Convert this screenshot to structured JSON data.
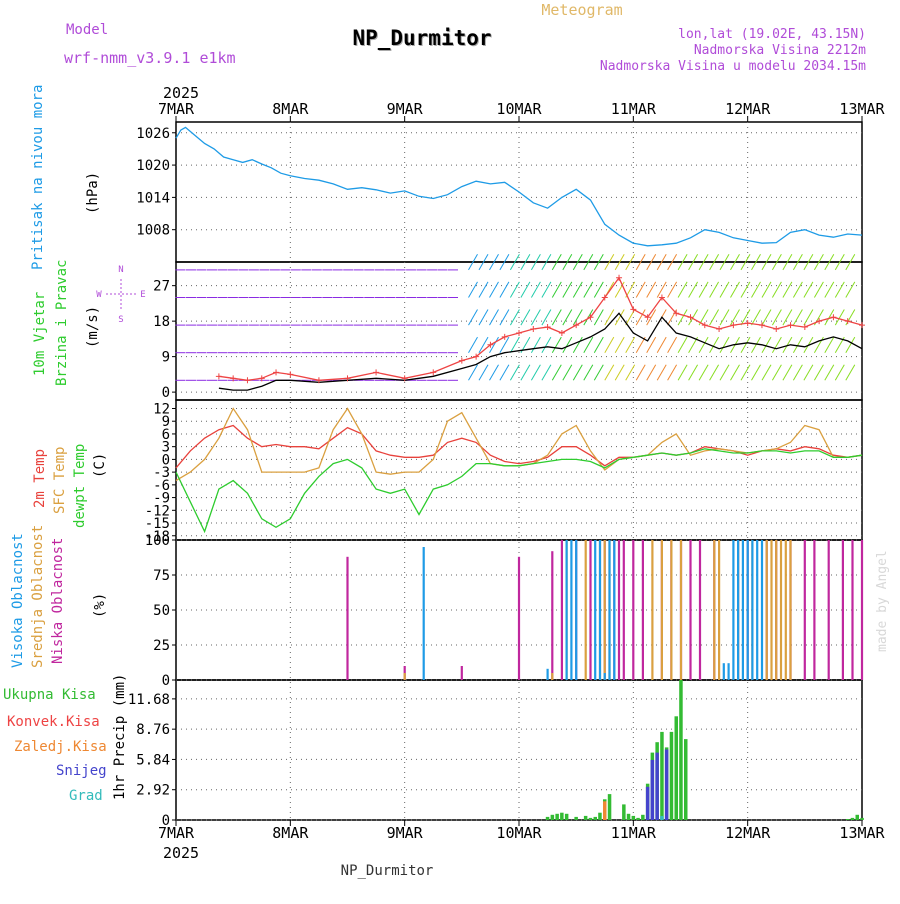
{
  "header": {
    "model_label": "Model",
    "model_name": "wrf-nmm_v3.9.1  e1km",
    "title": "NP_Durmitor",
    "meteogram_label": "Meteogram",
    "lonlat": "lon,lat (19.02E, 43.15N)",
    "altitude": "Nadmorska Visina 2212m",
    "model_altitude": "Nadmorska Visina u modelu 2034.15m",
    "footer_station": "NP_Durmitor",
    "credit": "made by Angel"
  },
  "time_axis": {
    "year": "2025",
    "ticks": [
      "7MAR",
      "8MAR",
      "9MAR",
      "10MAR",
      "11MAR",
      "12MAR",
      "13MAR"
    ],
    "range_hours": [
      0,
      144
    ]
  },
  "colors": {
    "pressure": "#1e9be6",
    "temp2m": "#e8423c",
    "sfc_temp": "#daa040",
    "dewpt": "#2ecc2e",
    "high_cloud": "#1e9be6",
    "mid_cloud": "#daa040",
    "low_cloud": "#c0279e",
    "total_precip": "#33bb33",
    "conv_precip": "#ee4444",
    "frozen_precip": "#ee8833",
    "snow": "#4444cc",
    "graupel": "#33bbbb",
    "wind_speed": "#000000",
    "wind_gust": "#ee4444",
    "header_purple": "#b04cd8",
    "meteogram_gold": "#e0b868"
  },
  "chart_data": [
    {
      "id": "pressure",
      "type": "line",
      "ylabel_lines": [
        "Pritisak na nivou mora"
      ],
      "unit": "(hPa)",
      "ylim": [
        1002,
        1028
      ],
      "yticks": [
        1008,
        1014,
        1020,
        1026
      ],
      "grid": true,
      "series": [
        {
          "x": [
            0,
            1,
            2,
            4,
            6,
            8,
            10,
            12,
            14,
            16,
            18,
            20,
            22,
            24,
            27,
            30,
            33,
            36,
            39,
            42,
            45,
            48,
            51,
            54,
            57,
            60,
            63,
            66,
            69,
            72,
            75,
            78,
            81,
            84,
            87,
            90,
            93,
            96,
            99,
            102,
            105,
            108,
            111,
            114,
            117,
            120,
            123,
            126,
            129,
            132,
            135,
            138,
            141,
            144
          ],
          "y": [
            1025,
            1026.5,
            1027,
            1025.5,
            1024,
            1023,
            1021.5,
            1021,
            1020.5,
            1021,
            1020.2,
            1019.5,
            1018.5,
            1018,
            1017.5,
            1017.2,
            1016.5,
            1015.5,
            1015.8,
            1015.4,
            1014.8,
            1015.2,
            1014.2,
            1013.8,
            1014.5,
            1016,
            1017,
            1016.5,
            1016.8,
            1015,
            1013,
            1012,
            1014,
            1015.5,
            1013.5,
            1009,
            1007,
            1005.5,
            1005,
            1005.2,
            1005.5,
            1006.5,
            1008,
            1007.5,
            1006.5,
            1006,
            1005.5,
            1005.6,
            1007.5,
            1008,
            1007,
            1006.6,
            1007.2,
            1007
          ]
        }
      ]
    },
    {
      "id": "wind",
      "type": "line",
      "ylabel_lines": [
        "10m Vjetar",
        "Brzina i Pravac"
      ],
      "unit": "(m/s)",
      "compass": [
        "N",
        "E",
        "S",
        "W"
      ],
      "ylim": [
        -2,
        33
      ],
      "yticks": [
        0,
        9,
        18,
        27
      ],
      "grid": true,
      "series": [
        {
          "name_key": "wind_speed",
          "x": [
            9,
            12,
            15,
            18,
            21,
            24,
            30,
            36,
            42,
            48,
            54,
            60,
            63,
            66,
            69,
            72,
            75,
            78,
            81,
            84,
            87,
            90,
            93,
            96,
            99,
            102,
            105,
            108,
            111,
            114,
            117,
            120,
            123,
            126,
            129,
            132,
            135,
            138,
            141,
            144
          ],
          "y": [
            1,
            0.5,
            0.5,
            1.5,
            3,
            3,
            2.5,
            3,
            3.5,
            3,
            4,
            6,
            7,
            9,
            10,
            10.5,
            11,
            11.5,
            11,
            12.5,
            14,
            16,
            20,
            15,
            13,
            19,
            15,
            14,
            12.5,
            11,
            12,
            12.5,
            12,
            11,
            12,
            11.5,
            13,
            14,
            13,
            11
          ]
        },
        {
          "name_key": "wind_gust",
          "x": [
            9,
            12,
            15,
            18,
            21,
            24,
            30,
            36,
            42,
            48,
            54,
            60,
            63,
            66,
            69,
            72,
            75,
            78,
            81,
            84,
            87,
            90,
            93,
            96,
            99,
            102,
            105,
            108,
            111,
            114,
            117,
            120,
            123,
            126,
            129,
            132,
            135,
            138,
            141,
            144
          ],
          "y": [
            4,
            3.5,
            3,
            3.5,
            5,
            4.5,
            3,
            3.5,
            5,
            3.5,
            5,
            8,
            9,
            12,
            14,
            15,
            16,
            16.5,
            15,
            17,
            19,
            24,
            29,
            21,
            19,
            24,
            20,
            19,
            17,
            16,
            17,
            17.5,
            17,
            16,
            17,
            16.5,
            18,
            19,
            18,
            17
          ]
        }
      ]
    },
    {
      "id": "temperature",
      "type": "line",
      "ylabel_lines": [
        "2m Temp",
        "SFC Temp",
        "dewpt Temp"
      ],
      "unit": "(C)",
      "ylim": [
        -19,
        14
      ],
      "yticks": [
        12,
        9,
        6,
        3,
        0,
        -3,
        -6,
        -9,
        -12,
        -15,
        -18
      ],
      "grid": true,
      "series": [
        {
          "name_key": "temp2m",
          "x": [
            0,
            3,
            6,
            9,
            12,
            15,
            18,
            21,
            24,
            27,
            30,
            33,
            36,
            39,
            42,
            45,
            48,
            51,
            54,
            57,
            60,
            63,
            66,
            69,
            72,
            75,
            78,
            81,
            84,
            87,
            90,
            93,
            96,
            99,
            102,
            105,
            108,
            111,
            114,
            117,
            120,
            123,
            126,
            129,
            132,
            135,
            138,
            141,
            144
          ],
          "y": [
            -2,
            2,
            5,
            7,
            8,
            5,
            3,
            3.5,
            3,
            3,
            2.5,
            5,
            7.5,
            6,
            2,
            1,
            0.5,
            0.5,
            1,
            4,
            5,
            4,
            1,
            -0.5,
            -1,
            -0.5,
            0.5,
            3,
            3,
            1,
            -1.5,
            0.5,
            0.5,
            1,
            1.5,
            1,
            1.5,
            3,
            2.5,
            2,
            1,
            2,
            2.5,
            2,
            3,
            2.5,
            1,
            0.5,
            1
          ]
        },
        {
          "name_key": "sfc_temp",
          "x": [
            0,
            3,
            6,
            9,
            12,
            15,
            18,
            21,
            24,
            27,
            30,
            33,
            36,
            39,
            42,
            45,
            48,
            51,
            54,
            57,
            60,
            63,
            66,
            69,
            72,
            75,
            78,
            81,
            84,
            87,
            90,
            93,
            96,
            99,
            102,
            105,
            108,
            111,
            114,
            117,
            120,
            123,
            126,
            129,
            132,
            135,
            138,
            141,
            144
          ],
          "y": [
            -5,
            -3,
            0,
            5,
            12,
            7,
            -3,
            -3,
            -3,
            -3,
            -2,
            7,
            12,
            6,
            -3,
            -3.5,
            -3,
            -3,
            0,
            9,
            11,
            5,
            -1,
            -1.5,
            -1.5,
            -1,
            1,
            6,
            8,
            2,
            -2.5,
            0,
            0.5,
            1,
            4,
            6,
            1,
            2,
            2.5,
            2,
            1.5,
            2,
            2.5,
            4,
            8,
            7,
            0.5,
            0.5,
            1
          ]
        },
        {
          "name_key": "dewpt",
          "x": [
            0,
            3,
            6,
            9,
            12,
            15,
            18,
            21,
            24,
            27,
            30,
            33,
            36,
            39,
            42,
            45,
            48,
            51,
            54,
            57,
            60,
            63,
            66,
            69,
            72,
            75,
            78,
            81,
            84,
            87,
            90,
            93,
            96,
            99,
            102,
            105,
            108,
            111,
            114,
            117,
            120,
            123,
            126,
            129,
            132,
            135,
            138,
            141,
            144
          ],
          "y": [
            -3,
            -10,
            -17,
            -7,
            -5,
            -8,
            -14,
            -16,
            -14,
            -8,
            -4,
            -1,
            0,
            -2,
            -7,
            -8,
            -7,
            -13,
            -7,
            -6,
            -4,
            -1,
            -1,
            -1.5,
            -1.5,
            -1,
            -0.5,
            0,
            0,
            -0.5,
            -2,
            0,
            0.5,
            1,
            1.5,
            1,
            1.5,
            2.5,
            2,
            1.5,
            1.5,
            2,
            2,
            1.5,
            2,
            2,
            0.5,
            0.5,
            1
          ]
        }
      ]
    },
    {
      "id": "clouds",
      "type": "bar",
      "ylabel_lines": [
        "Visoka Oblacnost",
        "Srednja Oblacnost",
        "Niska Oblacnost"
      ],
      "unit": "(%)",
      "ylim": [
        0,
        100
      ],
      "yticks": [
        0,
        25,
        50,
        75,
        100
      ],
      "grid": true,
      "series": [
        {
          "name_key": "low_cloud",
          "x": [
            36,
            48,
            60,
            72,
            79,
            81,
            84,
            87,
            90,
            92,
            93,
            94,
            96,
            98,
            102,
            104,
            106,
            108,
            110,
            113,
            118,
            120,
            124,
            126,
            129,
            132,
            134,
            137,
            140,
            142,
            144
          ],
          "y": [
            88,
            10,
            10,
            88,
            92,
            100,
            100,
            100,
            100,
            100,
            100,
            100,
            100,
            100,
            100,
            100,
            100,
            100,
            100,
            100,
            100,
            100,
            100,
            100,
            100,
            100,
            100,
            100,
            100,
            100,
            100
          ]
        },
        {
          "name_key": "mid_cloud",
          "x": [
            48,
            79,
            82,
            86,
            89,
            90,
            91,
            100,
            102,
            104,
            106,
            113,
            114,
            118,
            121,
            124,
            125,
            126,
            127,
            128,
            129
          ],
          "y": [
            5,
            5,
            100,
            100,
            100,
            100,
            100,
            100,
            100,
            100,
            100,
            100,
            100,
            100,
            100,
            100,
            100,
            100,
            100,
            100,
            100
          ]
        },
        {
          "name_key": "high_cloud",
          "x": [
            52,
            78,
            82,
            83,
            84,
            88,
            89,
            90,
            91,
            92,
            115,
            116,
            117,
            118,
            119,
            120,
            121,
            122,
            123
          ],
          "y": [
            95,
            8,
            100,
            100,
            100,
            100,
            100,
            5,
            100,
            100,
            12,
            12,
            100,
            100,
            100,
            100,
            100,
            100,
            100
          ]
        }
      ]
    },
    {
      "id": "precip",
      "type": "bar",
      "ylabel_lines": [
        "Ukupna Kisa",
        "Konvek.Kisa",
        "Zaledj.Kisa",
        "Snijeg",
        "Grad"
      ],
      "unit": "1hr Precip (mm)",
      "ylim": [
        0,
        13.5
      ],
      "yticks": [
        0,
        2.92,
        5.84,
        8.76,
        11.68
      ],
      "grid": true,
      "series": [
        {
          "name_key": "total_precip",
          "x": [
            78,
            79,
            80,
            81,
            82,
            84,
            86,
            87,
            88,
            89,
            90,
            91,
            94,
            95,
            96,
            97,
            98,
            99,
            100,
            101,
            102,
            103,
            104,
            105,
            106,
            107,
            141,
            142,
            143,
            144
          ],
          "y": [
            0.3,
            0.5,
            0.6,
            0.7,
            0.6,
            0.3,
            0.4,
            0.2,
            0.3,
            0.7,
            2,
            2.5,
            1.5,
            0.6,
            0.4,
            0.2,
            0.5,
            3.5,
            6.5,
            7.5,
            8.5,
            7,
            8.5,
            10,
            13.5,
            7.8,
            0.1,
            0.2,
            0.5,
            0.2
          ]
        },
        {
          "name_key": "frozen_precip",
          "x": [
            90
          ],
          "y": [
            1.8
          ]
        },
        {
          "name_key": "snow",
          "x": [
            99,
            100,
            101,
            103
          ],
          "y": [
            3.2,
            5.8,
            6.5,
            6.8
          ]
        },
        {
          "name_key": "graupel",
          "x": [
            102
          ],
          "y": [
            0.4
          ]
        }
      ]
    }
  ],
  "panel_labels": {
    "pressure": "Pritisak na nivou mora",
    "wind_a": "10m Vjetar",
    "wind_b": "Brzina i Pravac",
    "temp_a": "2m Temp",
    "temp_b": "SFC Temp",
    "temp_c": "dewpt Temp",
    "cloud_a": "Visoka Oblacnost",
    "cloud_b": "Srednja Oblacnost",
    "cloud_c": "Niska Oblacnost",
    "precip_a": "Ukupna Kisa",
    "precip_b": "Konvek.Kisa",
    "precip_c": "Zaledj.Kisa",
    "precip_d": "Snijeg",
    "precip_e": "Grad"
  },
  "units": {
    "pressure": "(hPa)",
    "wind": "(m/s)",
    "temp": "(C)",
    "cloud": "(%)",
    "precip": "1hr Precip (mm)"
  }
}
